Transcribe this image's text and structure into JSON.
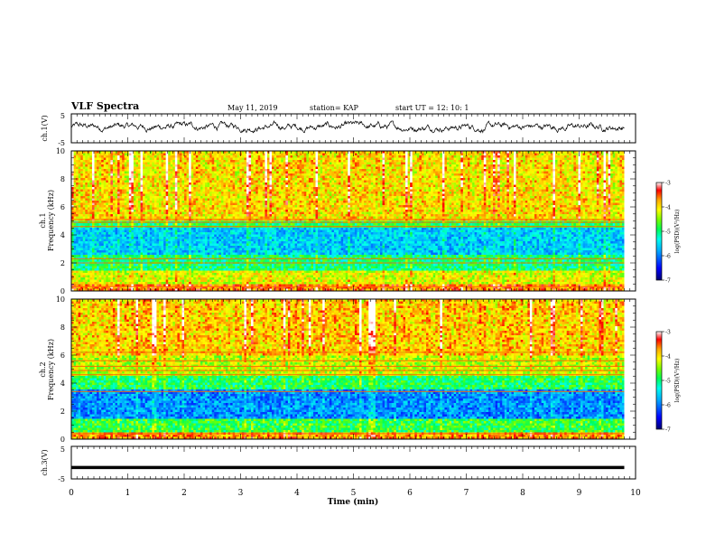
{
  "header": {
    "title": "VLF Spectra",
    "date": "May 11, 2019",
    "station": "station= KAP",
    "start": "start  UT =   12: 10: 1"
  },
  "colors": {
    "colormap": [
      "#000070",
      "#0000ff",
      "#00aaff",
      "#00ffee",
      "#00ff55",
      "#77ff00",
      "#ffff00",
      "#ffaa00",
      "#ff0000",
      "#ffffff"
    ]
  },
  "chart_data": [
    {
      "type": "line",
      "panel": "ch1-waveform",
      "ylabel": "ch.1(V)",
      "ylim": [
        -5,
        5
      ],
      "ytick_labels": [
        "5",
        "-5"
      ],
      "xlim": [
        0,
        10
      ],
      "description_values": {
        "mean_level": 0.5,
        "typical_range": [
          -1.5,
          2.5
        ]
      }
    },
    {
      "type": "heatmap",
      "panel": "ch1-spectrogram",
      "ylabel": "ch.1",
      "ylabel2": "Frequency  (kHz)",
      "ylim": [
        0,
        10
      ],
      "ytick_labels": [
        "0",
        "2",
        "4",
        "6",
        "8",
        "10"
      ],
      "xlim": [
        0,
        10
      ],
      "colorbar": {
        "label": "log(PSD)(V²/Hz)",
        "range": [
          -7,
          -3
        ],
        "tick_labels": [
          "-3",
          "-4",
          "-5",
          "-6",
          "-7"
        ]
      },
      "level_profile": [
        {
          "freq_range": [
            0,
            0.5
          ],
          "level": -3.6
        },
        {
          "freq_range": [
            0.5,
            1.5
          ],
          "level": -4.2
        },
        {
          "freq_range": [
            1.5,
            2.5
          ],
          "level": -5.0
        },
        {
          "freq_range": [
            2.5,
            4.5
          ],
          "level": -5.6
        },
        {
          "freq_range": [
            4.5,
            5.0
          ],
          "level": -4.9
        },
        {
          "freq_range": [
            5.0,
            10.0
          ],
          "level": -4.0
        }
      ],
      "narrowband_lines_khz": [
        0.3,
        2.0,
        2.3,
        4.6,
        4.9,
        5.1
      ]
    },
    {
      "type": "heatmap",
      "panel": "ch2-spectrogram",
      "ylabel": "ch.2",
      "ylabel2": "Frequency  (kHz)",
      "ylim": [
        0,
        10
      ],
      "ytick_labels": [
        "0",
        "2",
        "4",
        "6",
        "8",
        "10"
      ],
      "xlim": [
        0,
        10
      ],
      "colorbar": {
        "label": "log(PSD)(V²/Hz)",
        "range": [
          -7,
          -3
        ],
        "tick_labels": [
          "-3",
          "-4",
          "-5",
          "-6",
          "-7"
        ]
      },
      "level_profile": [
        {
          "freq_range": [
            0,
            0.5
          ],
          "level": -3.7
        },
        {
          "freq_range": [
            0.5,
            1.5
          ],
          "level": -4.8
        },
        {
          "freq_range": [
            1.5,
            3.5
          ],
          "level": -5.9
        },
        {
          "freq_range": [
            3.5,
            4.5
          ],
          "level": -4.9
        },
        {
          "freq_range": [
            4.5,
            6.0
          ],
          "level": -4.3
        },
        {
          "freq_range": [
            6.0,
            10.0
          ],
          "level": -3.9
        }
      ],
      "narrowband_lines_khz": [
        0.4,
        3.4,
        4.6,
        4.9,
        5.2,
        5.6,
        6.2
      ]
    },
    {
      "type": "line",
      "panel": "ch3-waveform",
      "ylabel": "ch.3(V)",
      "ylim": [
        -5,
        5
      ],
      "ytick_labels": [
        "5",
        "-5"
      ],
      "xlim": [
        0,
        10
      ],
      "xlabel": "Time  (min)",
      "xtick_labels": [
        "0",
        "1",
        "2",
        "3",
        "4",
        "5",
        "6",
        "7",
        "8",
        "9",
        "10"
      ],
      "constant_value": -1.5,
      "data_end_min": 9.8
    }
  ]
}
